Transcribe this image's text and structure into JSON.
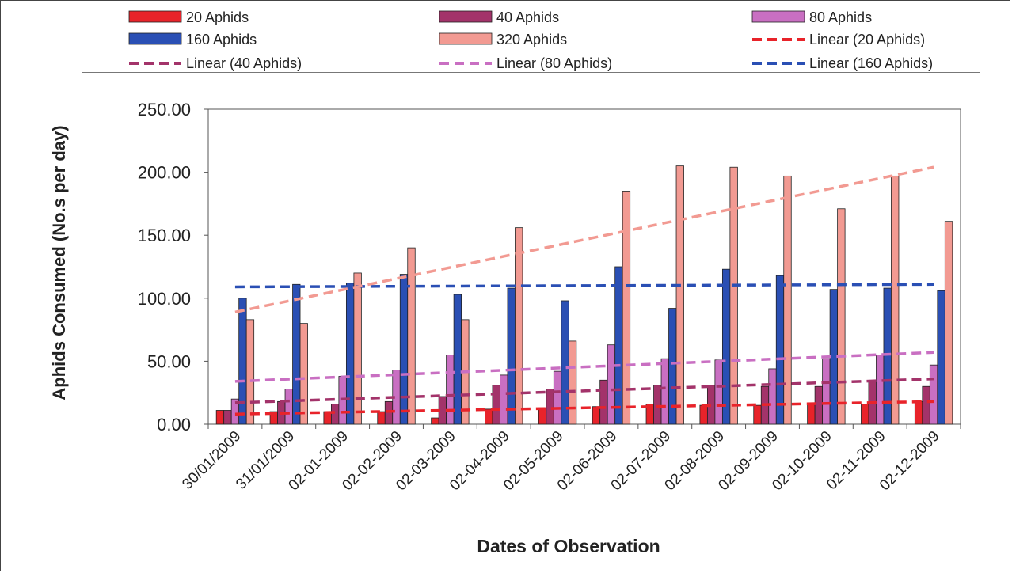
{
  "chart_data": {
    "type": "bar",
    "xlabel": "Dates of Observation",
    "ylabel": "Aphids Consumed (No.s per day)",
    "ylim": [
      0,
      250
    ],
    "yticks": [
      "0.00",
      "50.00",
      "100.00",
      "150.00",
      "200.00",
      "250.00"
    ],
    "grid": false,
    "legend_position": "top",
    "categories": [
      "30/01/2009",
      "31/01/2009",
      "02-01-2009",
      "02-02-2009",
      "02-03-2009",
      "02-04-2009",
      "02-05-2009",
      "02-06-2009",
      "02-07-2009",
      "02-08-2009",
      "02-09-2009",
      "02-10-2009",
      "02-11-2009",
      "02-12-2009"
    ],
    "series": [
      {
        "name": "20 Aphids",
        "color": "#e8232a",
        "values": [
          11,
          10,
          10,
          10,
          5,
          12,
          13,
          14,
          16,
          15,
          15,
          17,
          16,
          18
        ]
      },
      {
        "name": "40 Aphids",
        "color": "#a3336a",
        "values": [
          11,
          18,
          16,
          18,
          22,
          31,
          28,
          35,
          31,
          31,
          30,
          30,
          34,
          30
        ]
      },
      {
        "name": "80 Aphids",
        "color": "#c96fc2",
        "values": [
          20,
          28,
          38,
          43,
          55,
          39,
          42,
          63,
          52,
          51,
          44,
          52,
          55,
          47
        ]
      },
      {
        "name": "160 Aphids",
        "color": "#2a4fb4",
        "values": [
          100,
          111,
          112,
          119,
          103,
          108,
          98,
          125,
          92,
          123,
          118,
          107,
          108,
          106
        ]
      },
      {
        "name": "320 Aphids",
        "color": "#f29a92",
        "values": [
          83,
          80,
          120,
          140,
          83,
          156,
          66,
          185,
          205,
          204,
          197,
          171,
          197,
          161
        ]
      }
    ],
    "trendlines": [
      {
        "name": "Linear (20 Aphids)",
        "color": "#e8232a",
        "start": 8,
        "end": 18
      },
      {
        "name": "Linear (40 Aphids)",
        "color": "#a3336a",
        "start": 17,
        "end": 36
      },
      {
        "name": "Linear (80 Aphids)",
        "color": "#c96fc2",
        "start": 34,
        "end": 57
      },
      {
        "name": "Linear (160 Aphids)",
        "color": "#2a4fb4",
        "start": 109,
        "end": 111
      },
      {
        "name": "",
        "color": "#f29a92",
        "start": 89,
        "end": 204
      }
    ],
    "legend_order": [
      "20 Aphids",
      "40 Aphids",
      "80 Aphids",
      "160 Aphids",
      "320 Aphids",
      "Linear (20 Aphids)",
      "Linear (40 Aphids)",
      "Linear (80 Aphids)",
      "Linear (160 Aphids)"
    ]
  }
}
